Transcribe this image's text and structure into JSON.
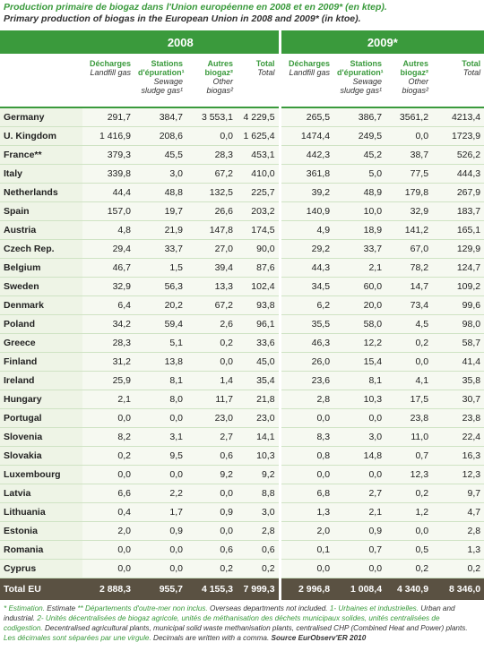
{
  "title_fr": "Production primaire de biogaz dans l'Union européenne en 2008 et en 2009* (en ktep).",
  "title_en": "Primary production of biogas in the European Union in 2008 and 2009* (in ktoe).",
  "table": {
    "groups": [
      "2008",
      "2009*"
    ],
    "columns": [
      {
        "fr": "Décharges",
        "en": "Landfill gas"
      },
      {
        "fr": "Stations d'épuration¹",
        "en": "Sewage sludge gas¹"
      },
      {
        "fr": "Autres biogaz²",
        "en": "Other biogas²"
      },
      {
        "fr": "Total",
        "en": "Total"
      }
    ],
    "rows": [
      [
        "Germany",
        "291,7",
        "384,7",
        "3 553,1",
        "4 229,5",
        "265,5",
        "386,7",
        "3561,2",
        "4213,4"
      ],
      [
        "U. Kingdom",
        "1 416,9",
        "208,6",
        "0,0",
        "1 625,4",
        "1474,4",
        "249,5",
        "0,0",
        "1723,9"
      ],
      [
        "France**",
        "379,3",
        "45,5",
        "28,3",
        "453,1",
        "442,3",
        "45,2",
        "38,7",
        "526,2"
      ],
      [
        "Italy",
        "339,8",
        "3,0",
        "67,2",
        "410,0",
        "361,8",
        "5,0",
        "77,5",
        "444,3"
      ],
      [
        "Netherlands",
        "44,4",
        "48,8",
        "132,5",
        "225,7",
        "39,2",
        "48,9",
        "179,8",
        "267,9"
      ],
      [
        "Spain",
        "157,0",
        "19,7",
        "26,6",
        "203,2",
        "140,9",
        "10,0",
        "32,9",
        "183,7"
      ],
      [
        "Austria",
        "4,8",
        "21,9",
        "147,8",
        "174,5",
        "4,9",
        "18,9",
        "141,2",
        "165,1"
      ],
      [
        "Czech Rep.",
        "29,4",
        "33,7",
        "27,0",
        "90,0",
        "29,2",
        "33,7",
        "67,0",
        "129,9"
      ],
      [
        "Belgium",
        "46,7",
        "1,5",
        "39,4",
        "87,6",
        "44,3",
        "2,1",
        "78,2",
        "124,7"
      ],
      [
        "Sweden",
        "32,9",
        "56,3",
        "13,3",
        "102,4",
        "34,5",
        "60,0",
        "14,7",
        "109,2"
      ],
      [
        "Denmark",
        "6,4",
        "20,2",
        "67,2",
        "93,8",
        "6,2",
        "20,0",
        "73,4",
        "99,6"
      ],
      [
        "Poland",
        "34,2",
        "59,4",
        "2,6",
        "96,1",
        "35,5",
        "58,0",
        "4,5",
        "98,0"
      ],
      [
        "Greece",
        "28,3",
        "5,1",
        "0,2",
        "33,6",
        "46,3",
        "12,2",
        "0,2",
        "58,7"
      ],
      [
        "Finland",
        "31,2",
        "13,8",
        "0,0",
        "45,0",
        "26,0",
        "15,4",
        "0,0",
        "41,4"
      ],
      [
        "Ireland",
        "25,9",
        "8,1",
        "1,4",
        "35,4",
        "23,6",
        "8,1",
        "4,1",
        "35,8"
      ],
      [
        "Hungary",
        "2,1",
        "8,0",
        "11,7",
        "21,8",
        "2,8",
        "10,3",
        "17,5",
        "30,7"
      ],
      [
        "Portugal",
        "0,0",
        "0,0",
        "23,0",
        "23,0",
        "0,0",
        "0,0",
        "23,8",
        "23,8"
      ],
      [
        "Slovenia",
        "8,2",
        "3,1",
        "2,7",
        "14,1",
        "8,3",
        "3,0",
        "11,0",
        "22,4"
      ],
      [
        "Slovakia",
        "0,2",
        "9,5",
        "0,6",
        "10,3",
        "0,8",
        "14,8",
        "0,7",
        "16,3"
      ],
      [
        "Luxembourg",
        "0,0",
        "0,0",
        "9,2",
        "9,2",
        "0,0",
        "0,0",
        "12,3",
        "12,3"
      ],
      [
        "Latvia",
        "6,6",
        "2,2",
        "0,0",
        "8,8",
        "6,8",
        "2,7",
        "0,2",
        "9,7"
      ],
      [
        "Lithuania",
        "0,4",
        "1,7",
        "0,9",
        "3,0",
        "1,3",
        "2,1",
        "1,2",
        "4,7"
      ],
      [
        "Estonia",
        "2,0",
        "0,9",
        "0,0",
        "2,8",
        "2,0",
        "0,9",
        "0,0",
        "2,8"
      ],
      [
        "Romania",
        "0,0",
        "0,0",
        "0,6",
        "0,6",
        "0,1",
        "0,7",
        "0,5",
        "1,3"
      ],
      [
        "Cyprus",
        "0,0",
        "0,0",
        "0,2",
        "0,2",
        "0,0",
        "0,0",
        "0,2",
        "0,2"
      ]
    ],
    "total": [
      "Total EU",
      "2 888,3",
      "955,7",
      "4 155,3",
      "7 999,3",
      "2 996,8",
      "1 008,4",
      "4 340,9",
      "8 346,0"
    ]
  },
  "notes": [
    {
      "text": "* Estimation.",
      "color": "#3a9a3c"
    },
    {
      "text": " Estimate ",
      "color": "#333333"
    },
    {
      "text": "** Départements d'outre-mer non inclus.",
      "color": "#3a9a3c"
    },
    {
      "text": " Overseas departments not included. ",
      "color": "#333333"
    },
    {
      "text": "1- Urbaines et industrielles.",
      "color": "#3a9a3c"
    },
    {
      "text": " Urban and industrial. ",
      "color": "#333333"
    },
    {
      "text": "2- Unités décentralisées de biogaz agricole, unités de méthanisation des déchets municipaux solides, unités centralisées de codigestion.",
      "color": "#3a9a3c"
    },
    {
      "text": " Decentralised agricultural plants, municipal solid waste methanisation plants, centralised CHP (Combined Heat and Power) plants.",
      "color": "#333333"
    },
    {
      "text": " Les décimales sont séparées par une virgule.",
      "color": "#3a9a3c"
    },
    {
      "text": " Decimals are written with a comma. ",
      "color": "#333333"
    },
    {
      "text": "Source EurObserv'ER 2010",
      "color": "#333333",
      "weight": "bold"
    }
  ]
}
